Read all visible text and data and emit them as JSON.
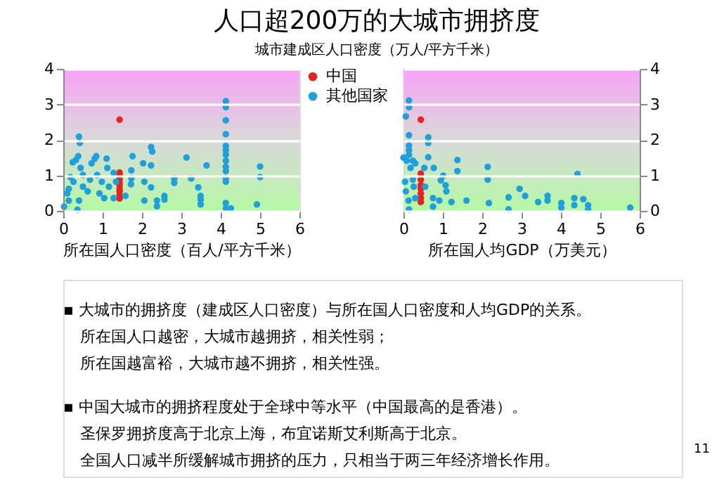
{
  "chart_data": [
    {
      "type": "scatter",
      "title": "人口超200万的大城市拥挤度",
      "subtitle": "城市建成区人口密度（万人/平方千米）",
      "xlabel": "所在国人口密度（百人/平方千米）",
      "xlim": [
        0,
        6
      ],
      "xticks": [
        0,
        1,
        2,
        3,
        4,
        5,
        6
      ],
      "ylim": [
        0,
        4
      ],
      "yticks": [
        0,
        1,
        2,
        3,
        4
      ],
      "grid": "y",
      "legend": "right",
      "marker": "circle",
      "series": [
        {
          "name": "中国",
          "color": "#e8221c",
          "x": [
            1.43,
            1.43,
            1.43,
            1.43,
            1.43,
            1.43,
            1.43,
            1.43,
            1.43,
            1.43
          ],
          "values": [
            2.57,
            1.08,
            1.0,
            0.9,
            0.8,
            0.72,
            0.62,
            0.55,
            0.45,
            0.35
          ]
        },
        {
          "name": "其他国家",
          "color": "#1ea0dc",
          "x": [
            0.02,
            0.14,
            0.1,
            0.14,
            0.18,
            0.26,
            0.24,
            0.32,
            0.36,
            0.4,
            0.4,
            0.42,
            0.38,
            0.44,
            0.5,
            0.5,
            0.62,
            0.68,
            0.72,
            0.8,
            0.84,
            0.86,
            0.92,
            0.98,
            1.04,
            1.1,
            1.12,
            1.16,
            1.28,
            1.28,
            1.34,
            1.58,
            1.76,
            1.73,
            1.73,
            1.72,
            2.03,
            2.06,
            2.06,
            2.23,
            2.26,
            2.23,
            2.23,
            2.38,
            2.38,
            2.57,
            2.57,
            2.82,
            2.82,
            3.13,
            3.25,
            3.43,
            3.49,
            3.49,
            3.49,
            3.64,
            4.13,
            4.13,
            4.13,
            4.13,
            4.13,
            4.13,
            4.13,
            4.13,
            4.13,
            4.13,
            4.13,
            4.13,
            4.13,
            4.13,
            4.26,
            4.92,
            5.0,
            5.0
          ],
          "values": [
            0.12,
            0.29,
            0.49,
            0.62,
            0.95,
            0.82,
            1.37,
            1.43,
            0.03,
            0.29,
            2.09,
            1.91,
            1.54,
            1.21,
            1.01,
            0.68,
            0.55,
            0.88,
            1.34,
            1.47,
            1.54,
            1.01,
            0.49,
            0.82,
            0.36,
            1.47,
            1.21,
            0.68,
            0.36,
            1.07,
            0.82,
            0.42,
            1.54,
            1.14,
            0.91,
            0.75,
            1.34,
            0.82,
            0.29,
            1.8,
            1.67,
            1.28,
            0.66,
            0.29,
            0.13,
            0.42,
            0.32,
            0.91,
            0.79,
            1.5,
            0.91,
            0.66,
            0.42,
            0.32,
            0.18,
            1.28,
            3.09,
            2.92,
            2.55,
            2.16,
            1.83,
            1.71,
            1.58,
            1.41,
            1.24,
            1.12,
            0.91,
            0.82,
            0.22,
            0.07,
            0.07,
            0.18,
            1.25,
            0.95
          ]
        }
      ]
    },
    {
      "type": "scatter",
      "xlabel": "所在国人均GDP（万美元）",
      "xlim": [
        0,
        6
      ],
      "xticks": [
        0,
        1,
        2,
        3,
        4,
        5,
        6
      ],
      "ylim": [
        0,
        4
      ],
      "yticks": [
        0,
        1,
        2,
        3,
        4
      ],
      "grid": "y",
      "marker": "circle",
      "series": [
        {
          "color": "#e8221c",
          "x": [
            0.44,
            0.44,
            0.44,
            0.44,
            0.44,
            0.44,
            0.44,
            0.44
          ],
          "values": [
            2.57,
            1.05,
            0.88,
            0.72,
            0.62,
            0.49,
            0.36,
            0.25
          ]
        },
        {
          "color": "#1ea0dc",
          "x": [
            0.14,
            0.14,
            0.06,
            0.14,
            0.14,
            0.14,
            0.14,
            0.0,
            0.08,
            0.24,
            0.18,
            0.3,
            0.04,
            0.06,
            0.13,
            0.14,
            0.24,
            0.26,
            0.3,
            0.53,
            0.55,
            0.63,
            0.63,
            0.63,
            0.77,
            0.75,
            0.75,
            0.95,
            1.01,
            1.07,
            0.91,
            1.09,
            1.22,
            1.37,
            1.37,
            1.6,
            2.14,
            2.14,
            2.17,
            2.67,
            2.67,
            2.95,
            3.09,
            3.42,
            3.66,
            3.66,
            4.01,
            4.01,
            4.34,
            4.34,
            4.42,
            4.57,
            4.69,
            4.69,
            5.76
          ],
          "values": [
            3.11,
            2.92,
            2.66,
            2.13,
            1.84,
            1.71,
            1.58,
            1.5,
            1.41,
            1.41,
            1.21,
            1.34,
            0.82,
            0.55,
            0.29,
            0.04,
            0.88,
            0.68,
            0.36,
            1.21,
            0.68,
            2.07,
            1.91,
            1.51,
            1.21,
            0.36,
            0.12,
            0.86,
            0.99,
            0.72,
            0.29,
            0.55,
            0.25,
            1.43,
            1.12,
            0.29,
            1.24,
            0.88,
            0.22,
            0.38,
            0.04,
            0.62,
            0.42,
            0.25,
            0.42,
            0.29,
            0.22,
            0.09,
            0.36,
            0.16,
            1.04,
            0.33,
            0.16,
            0.04,
            0.09
          ]
        }
      ],
      "annotations": [
        "▪ 大城市的拥挤度（建成区人口密度）与所在国人口密度和人均GDP的关系。",
        "所在国人口越密，大城市越拥挤，相关性弱；",
        "所在国越富裕，大城市越不拥挤，相关性强。",
        "▪ 中国大城市的拥挤程度处于全球中等水平（中国最高的是香港）。",
        "圣保罗拥挤度高于北京上海，布宜诺斯艾利斯高于北京。",
        "全国人口减半所缓解城市拥挤的压力，只相当于两三年经济增长作用。",
        "11"
      ]
    }
  ]
}
